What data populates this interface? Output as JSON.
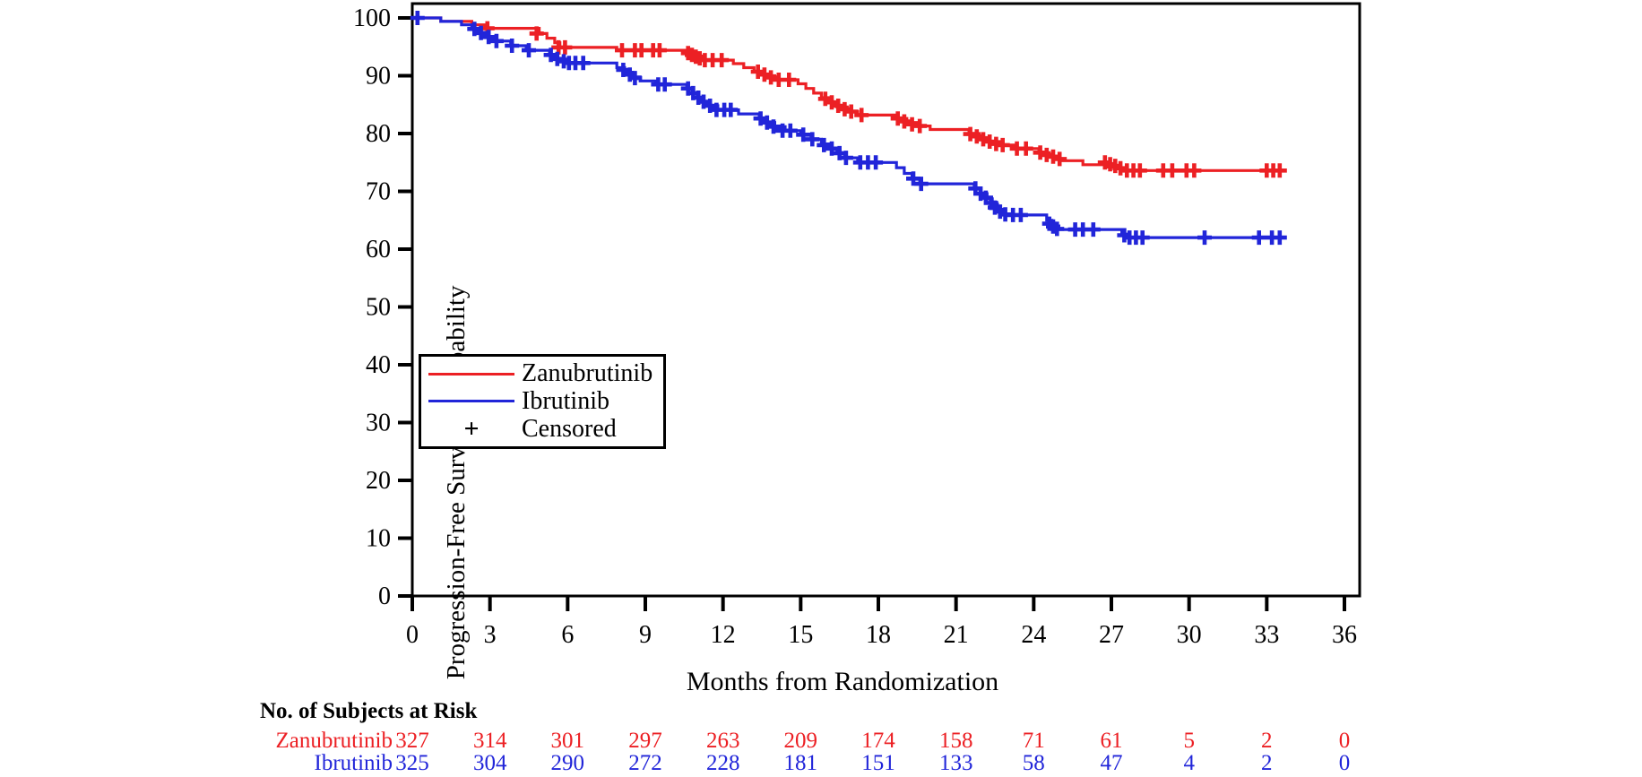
{
  "background": "#ffffff",
  "chart_data": {
    "type": "line",
    "subtype": "kaplan-meier-step",
    "title": "",
    "xlabel": "Months from Randomization",
    "ylabel": "Progression-Free Survival Probability",
    "xlim": [
      0,
      36.6
    ],
    "ylim": [
      0,
      102.5
    ],
    "x_ticks": [
      0,
      3,
      6,
      9,
      12,
      15,
      18,
      21,
      24,
      27,
      30,
      33,
      36
    ],
    "y_ticks": [
      0,
      10,
      20,
      30,
      40,
      50,
      60,
      70,
      80,
      90,
      100
    ],
    "grid": false,
    "legend_position": "inside-left-middle",
    "series": [
      {
        "name": "Zanubrutinib",
        "color": "#ec2024",
        "end_month": 33.7,
        "step_points": [
          [
            0,
            100
          ],
          [
            1.1,
            99.4
          ],
          [
            2.3,
            98.8
          ],
          [
            2.8,
            98.2
          ],
          [
            4.9,
            97.3
          ],
          [
            5.2,
            96.5
          ],
          [
            5.5,
            95.7
          ],
          [
            5.7,
            94.9
          ],
          [
            7.9,
            94.4
          ],
          [
            10.6,
            93.9
          ],
          [
            10.9,
            93.3
          ],
          [
            11.2,
            92.7
          ],
          [
            12.4,
            92.1
          ],
          [
            12.8,
            91.4
          ],
          [
            13.2,
            90.7
          ],
          [
            13.6,
            90.0
          ],
          [
            14.0,
            89.3
          ],
          [
            14.9,
            88.6
          ],
          [
            15.2,
            87.8
          ],
          [
            15.5,
            87.0
          ],
          [
            15.8,
            86.2
          ],
          [
            16.1,
            85.4
          ],
          [
            16.4,
            84.6
          ],
          [
            16.8,
            83.8
          ],
          [
            17.2,
            83.2
          ],
          [
            18.7,
            82.6
          ],
          [
            19.1,
            81.9
          ],
          [
            19.5,
            81.3
          ],
          [
            20.0,
            80.7
          ],
          [
            21.5,
            80.0
          ],
          [
            21.9,
            79.3
          ],
          [
            22.3,
            78.6
          ],
          [
            22.7,
            78.0
          ],
          [
            23.3,
            77.4
          ],
          [
            24.2,
            76.7
          ],
          [
            24.6,
            76.0
          ],
          [
            25.0,
            75.3
          ],
          [
            25.9,
            74.6
          ],
          [
            26.8,
            74.2
          ],
          [
            27.1,
            73.9
          ],
          [
            27.5,
            73.6
          ]
        ],
        "censor_marks": [
          [
            2.9,
            98.2
          ],
          [
            4.8,
            97.3
          ],
          [
            5.65,
            94.9
          ],
          [
            5.9,
            94.9
          ],
          [
            8.1,
            94.4
          ],
          [
            8.6,
            94.4
          ],
          [
            8.85,
            94.4
          ],
          [
            9.3,
            94.4
          ],
          [
            9.55,
            94.4
          ],
          [
            10.65,
            93.9
          ],
          [
            10.8,
            93.6
          ],
          [
            10.95,
            93.3
          ],
          [
            11.1,
            93.0
          ],
          [
            11.3,
            92.7
          ],
          [
            11.6,
            92.7
          ],
          [
            11.95,
            92.7
          ],
          [
            13.35,
            90.7
          ],
          [
            13.6,
            90.2
          ],
          [
            13.85,
            89.7
          ],
          [
            14.15,
            89.3
          ],
          [
            14.55,
            89.3
          ],
          [
            15.95,
            86.0
          ],
          [
            16.2,
            85.4
          ],
          [
            16.45,
            84.8
          ],
          [
            16.7,
            84.2
          ],
          [
            16.95,
            83.8
          ],
          [
            17.35,
            83.2
          ],
          [
            18.75,
            82.6
          ],
          [
            19.0,
            82.1
          ],
          [
            19.3,
            81.6
          ],
          [
            19.6,
            81.3
          ],
          [
            21.55,
            79.9
          ],
          [
            21.8,
            79.5
          ],
          [
            22.05,
            79.0
          ],
          [
            22.3,
            78.6
          ],
          [
            22.55,
            78.2
          ],
          [
            22.8,
            78.0
          ],
          [
            23.35,
            77.4
          ],
          [
            23.7,
            77.4
          ],
          [
            24.25,
            76.7
          ],
          [
            24.5,
            76.3
          ],
          [
            24.75,
            76.0
          ],
          [
            25.0,
            75.6
          ],
          [
            26.75,
            75.0
          ],
          [
            26.95,
            74.7
          ],
          [
            27.15,
            74.4
          ],
          [
            27.35,
            74.0
          ],
          [
            27.6,
            73.6
          ],
          [
            27.85,
            73.6
          ],
          [
            28.1,
            73.6
          ],
          [
            29.0,
            73.6
          ],
          [
            29.35,
            73.6
          ],
          [
            29.9,
            73.6
          ],
          [
            30.2,
            73.6
          ],
          [
            33.0,
            73.6
          ],
          [
            33.25,
            73.6
          ],
          [
            33.5,
            73.6
          ]
        ]
      },
      {
        "name": "Ibrutinib",
        "color": "#2125d9",
        "end_month": 33.7,
        "step_points": [
          [
            0,
            100
          ],
          [
            1.1,
            99.4
          ],
          [
            1.9,
            98.8
          ],
          [
            2.3,
            98.1
          ],
          [
            2.6,
            97.4
          ],
          [
            2.9,
            96.7
          ],
          [
            3.2,
            96.0
          ],
          [
            3.8,
            95.2
          ],
          [
            4.4,
            94.4
          ],
          [
            5.3,
            93.6
          ],
          [
            5.6,
            92.9
          ],
          [
            6.0,
            92.2
          ],
          [
            7.9,
            91.4
          ],
          [
            8.2,
            90.6
          ],
          [
            8.5,
            89.8
          ],
          [
            8.8,
            89.1
          ],
          [
            9.4,
            88.5
          ],
          [
            10.6,
            87.8
          ],
          [
            10.8,
            87.0
          ],
          [
            11.0,
            86.2
          ],
          [
            11.2,
            85.5
          ],
          [
            11.5,
            84.8
          ],
          [
            11.8,
            84.1
          ],
          [
            12.6,
            83.4
          ],
          [
            13.4,
            82.6
          ],
          [
            13.7,
            81.9
          ],
          [
            14.0,
            81.2
          ],
          [
            14.4,
            80.5
          ],
          [
            15.0,
            79.8
          ],
          [
            15.4,
            79.0
          ],
          [
            15.8,
            78.2
          ],
          [
            16.1,
            77.4
          ],
          [
            16.4,
            76.6
          ],
          [
            16.7,
            75.8
          ],
          [
            17.2,
            75.0
          ],
          [
            18.7,
            74.1
          ],
          [
            19.0,
            73.1
          ],
          [
            19.3,
            72.2
          ],
          [
            19.6,
            71.3
          ],
          [
            21.7,
            70.5
          ],
          [
            21.95,
            69.6
          ],
          [
            22.2,
            68.7
          ],
          [
            22.4,
            67.8
          ],
          [
            22.6,
            66.9
          ],
          [
            22.85,
            66.1
          ],
          [
            23.05,
            65.9
          ],
          [
            24.5,
            65.0
          ],
          [
            24.7,
            63.9
          ],
          [
            24.9,
            63.4
          ],
          [
            27.4,
            62.6
          ],
          [
            27.7,
            62.0
          ]
        ],
        "censor_marks": [
          [
            0.2,
            100
          ],
          [
            2.4,
            98.1
          ],
          [
            2.65,
            97.4
          ],
          [
            2.95,
            96.7
          ],
          [
            3.25,
            96.0
          ],
          [
            3.85,
            95.2
          ],
          [
            4.5,
            94.4
          ],
          [
            5.35,
            93.6
          ],
          [
            5.6,
            92.9
          ],
          [
            5.85,
            92.5
          ],
          [
            6.05,
            92.2
          ],
          [
            6.3,
            92.2
          ],
          [
            6.6,
            92.2
          ],
          [
            8.15,
            91.0
          ],
          [
            8.4,
            90.2
          ],
          [
            8.6,
            89.6
          ],
          [
            9.5,
            88.5
          ],
          [
            9.75,
            88.5
          ],
          [
            10.65,
            87.8
          ],
          [
            10.85,
            87.0
          ],
          [
            11.05,
            86.2
          ],
          [
            11.25,
            85.5
          ],
          [
            11.5,
            84.8
          ],
          [
            11.75,
            84.1
          ],
          [
            12.05,
            84.1
          ],
          [
            12.3,
            84.1
          ],
          [
            13.45,
            82.6
          ],
          [
            13.7,
            81.9
          ],
          [
            13.95,
            81.2
          ],
          [
            14.3,
            80.5
          ],
          [
            14.6,
            80.5
          ],
          [
            15.1,
            79.8
          ],
          [
            15.45,
            79.0
          ],
          [
            15.9,
            78.0
          ],
          [
            16.2,
            77.4
          ],
          [
            16.5,
            76.6
          ],
          [
            16.75,
            75.8
          ],
          [
            17.3,
            75.0
          ],
          [
            17.6,
            75.0
          ],
          [
            17.9,
            75.0
          ],
          [
            19.35,
            72.2
          ],
          [
            19.65,
            71.3
          ],
          [
            21.75,
            70.5
          ],
          [
            21.95,
            69.6
          ],
          [
            22.15,
            68.9
          ],
          [
            22.35,
            68.0
          ],
          [
            22.5,
            67.2
          ],
          [
            22.7,
            66.5
          ],
          [
            22.9,
            66.0
          ],
          [
            23.2,
            65.9
          ],
          [
            23.5,
            65.9
          ],
          [
            24.6,
            64.4
          ],
          [
            24.75,
            63.9
          ],
          [
            24.9,
            63.5
          ],
          [
            25.6,
            63.4
          ],
          [
            25.9,
            63.4
          ],
          [
            26.3,
            63.4
          ],
          [
            27.5,
            62.4
          ],
          [
            27.7,
            62.0
          ],
          [
            27.95,
            62.0
          ],
          [
            28.2,
            62.0
          ],
          [
            30.6,
            62.0
          ],
          [
            32.7,
            62.0
          ],
          [
            33.2,
            62.0
          ],
          [
            33.5,
            62.0
          ]
        ]
      }
    ]
  },
  "axes": {
    "x_title": "Months from Randomization",
    "y_title": "Progression-Free Survival Probability"
  },
  "legend": {
    "items": [
      {
        "label": "Zanubrutinib",
        "sample": "line",
        "color": "#ec2024"
      },
      {
        "label": "Ibrutinib",
        "sample": "line",
        "color": "#2125d9"
      },
      {
        "label": "Censored",
        "sample": "plus",
        "color": "#000000",
        "glyph": "+"
      }
    ]
  },
  "risk_table": {
    "title": "No. of Subjects at Risk",
    "months": [
      0,
      3,
      6,
      9,
      12,
      15,
      18,
      21,
      24,
      27,
      30,
      33,
      36
    ],
    "rows": [
      {
        "label": "Zanubrutinib",
        "color": "#ec2024",
        "values": [
          327,
          314,
          301,
          297,
          263,
          209,
          174,
          158,
          71,
          61,
          5,
          2,
          0
        ]
      },
      {
        "label": "Ibrutinib",
        "color": "#2125d9",
        "values": [
          325,
          304,
          290,
          272,
          228,
          181,
          151,
          133,
          58,
          47,
          4,
          2,
          0
        ]
      }
    ]
  },
  "colors": {
    "zanubrutinib": "#ec2024",
    "ibrutinib": "#2125d9",
    "axis": "#000000",
    "background": "#ffffff"
  }
}
